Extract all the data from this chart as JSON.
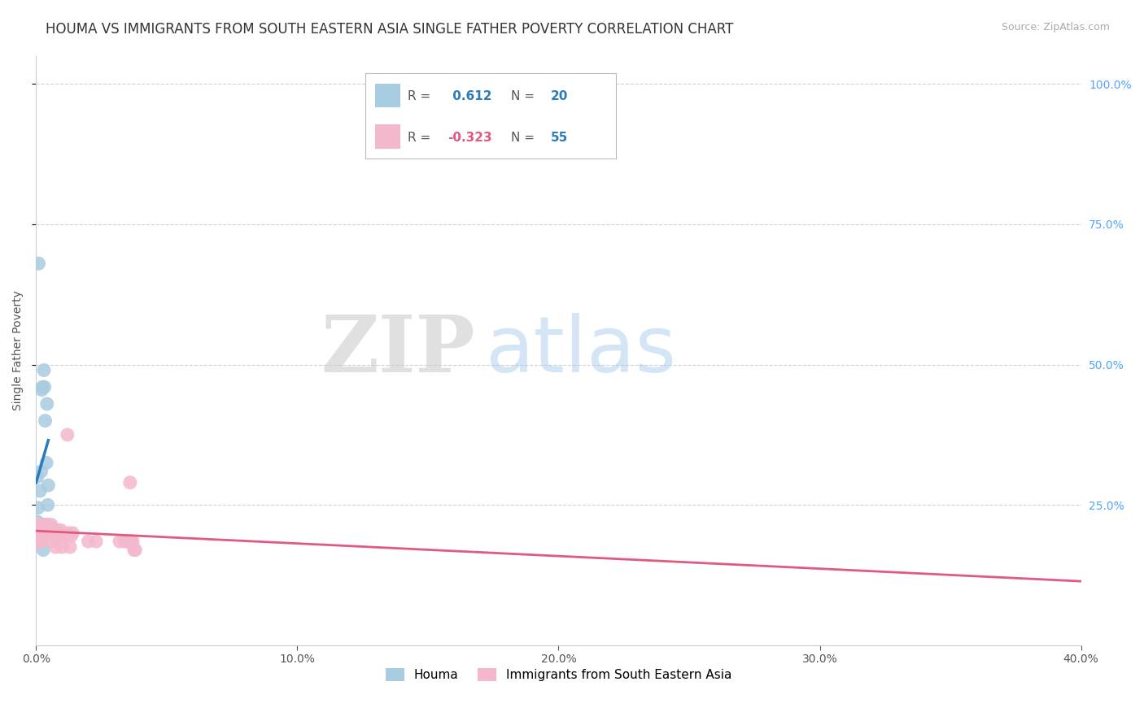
{
  "title": "HOUMA VS IMMIGRANTS FROM SOUTH EASTERN ASIA SINGLE FATHER POVERTY CORRELATION CHART",
  "source": "Source: ZipAtlas.com",
  "ylabel": "Single Father Poverty",
  "xlim": [
    0.0,
    0.4
  ],
  "ylim": [
    0.0,
    1.05
  ],
  "xtick_labels": [
    "0.0%",
    "",
    "10.0%",
    "",
    "20.0%",
    "",
    "30.0%",
    "",
    "40.0%"
  ],
  "xtick_values": [
    0.0,
    0.05,
    0.1,
    0.15,
    0.2,
    0.25,
    0.3,
    0.35,
    0.4
  ],
  "ytick_labels": [
    "25.0%",
    "50.0%",
    "75.0%",
    "100.0%"
  ],
  "ytick_values": [
    0.25,
    0.5,
    0.75,
    1.0
  ],
  "houma_color": "#a8cce0",
  "immigrants_color": "#f4b8cc",
  "houma_line_color": "#2b7bba",
  "immigrants_line_color": "#e05a80",
  "legend_r_houma": "0.612",
  "legend_n_houma": "20",
  "legend_r_immigrants": "-0.323",
  "legend_n_immigrants": "55",
  "r_value_color_blue": "#2b7bba",
  "r_value_color_pink": "#e05a80",
  "n_value_color": "#2b7bba",
  "watermark_zip": "ZIP",
  "watermark_atlas": "atlas",
  "background_color": "#ffffff",
  "houma_points": [
    [
      0.0015,
      0.215
    ],
    [
      0.0015,
      0.275
    ],
    [
      0.002,
      0.31
    ],
    [
      0.0022,
      0.455
    ],
    [
      0.0025,
      0.46
    ],
    [
      0.003,
      0.49
    ],
    [
      0.0032,
      0.46
    ],
    [
      0.0035,
      0.4
    ],
    [
      0.004,
      0.325
    ],
    [
      0.0042,
      0.43
    ],
    [
      0.0045,
      0.25
    ],
    [
      0.0047,
      0.285
    ],
    [
      0.0005,
      0.3
    ],
    [
      0.0006,
      0.22
    ],
    [
      0.0008,
      0.245
    ],
    [
      0.001,
      0.68
    ],
    [
      0.0012,
      0.195
    ],
    [
      0.0014,
      0.195
    ],
    [
      0.0018,
      0.185
    ],
    [
      0.0028,
      0.17
    ]
  ],
  "immigrants_points": [
    [
      0.0005,
      0.215
    ],
    [
      0.0008,
      0.215
    ],
    [
      0.0008,
      0.185
    ],
    [
      0.001,
      0.195
    ],
    [
      0.001,
      0.185
    ],
    [
      0.0012,
      0.2
    ],
    [
      0.0015,
      0.205
    ],
    [
      0.0015,
      0.19
    ],
    [
      0.0018,
      0.195
    ],
    [
      0.0018,
      0.2
    ],
    [
      0.002,
      0.185
    ],
    [
      0.0022,
      0.185
    ],
    [
      0.0022,
      0.21
    ],
    [
      0.0025,
      0.2
    ],
    [
      0.0028,
      0.195
    ],
    [
      0.003,
      0.215
    ],
    [
      0.003,
      0.2
    ],
    [
      0.0033,
      0.215
    ],
    [
      0.0035,
      0.205
    ],
    [
      0.0038,
      0.215
    ],
    [
      0.004,
      0.215
    ],
    [
      0.0042,
      0.215
    ],
    [
      0.0045,
      0.2
    ],
    [
      0.0048,
      0.205
    ],
    [
      0.005,
      0.205
    ],
    [
      0.0055,
      0.21
    ],
    [
      0.0058,
      0.215
    ],
    [
      0.006,
      0.21
    ],
    [
      0.0065,
      0.205
    ],
    [
      0.0068,
      0.2
    ],
    [
      0.007,
      0.195
    ],
    [
      0.007,
      0.185
    ],
    [
      0.0075,
      0.175
    ],
    [
      0.008,
      0.205
    ],
    [
      0.0085,
      0.195
    ],
    [
      0.009,
      0.2
    ],
    [
      0.0095,
      0.205
    ],
    [
      0.01,
      0.175
    ],
    [
      0.01,
      0.195
    ],
    [
      0.011,
      0.195
    ],
    [
      0.012,
      0.375
    ],
    [
      0.0125,
      0.2
    ],
    [
      0.013,
      0.175
    ],
    [
      0.0135,
      0.195
    ],
    [
      0.014,
      0.2
    ],
    [
      0.02,
      0.185
    ],
    [
      0.023,
      0.185
    ],
    [
      0.032,
      0.185
    ],
    [
      0.034,
      0.185
    ],
    [
      0.035,
      0.185
    ],
    [
      0.036,
      0.29
    ],
    [
      0.0365,
      0.185
    ],
    [
      0.037,
      0.185
    ],
    [
      0.0375,
      0.17
    ],
    [
      0.038,
      0.17
    ]
  ],
  "grid_color": "#d0d0d0",
  "title_fontsize": 12,
  "axis_label_fontsize": 10,
  "tick_fontsize": 10
}
